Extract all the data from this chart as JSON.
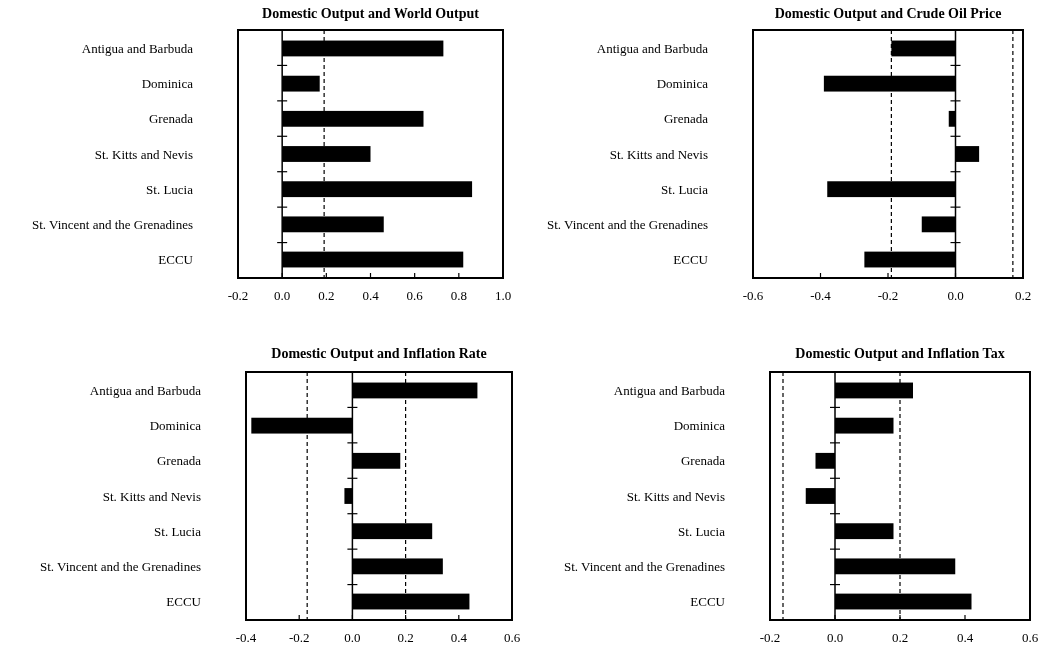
{
  "chart_data": [
    {
      "type": "bar",
      "orientation": "horizontal",
      "title": "Domestic Output and World Output",
      "categories": [
        "Antigua and Barbuda",
        "Dominica",
        "Grenada",
        "St. Kitts and Nevis",
        "St. Lucia",
        "St. Vincent and the Grenadines",
        "ECCU"
      ],
      "values": [
        0.73,
        0.17,
        0.64,
        0.4,
        0.86,
        0.46,
        0.82
      ],
      "color": "#000000",
      "xlim": [
        -0.2,
        1.0
      ],
      "xticks": [
        {
          "value": -0.2,
          "label": "-0.2"
        },
        {
          "value": 0,
          "label": "0.0"
        },
        {
          "value": 0.2,
          "label": "0.2"
        },
        {
          "value": 0.4,
          "label": "0.4"
        },
        {
          "value": 0.6,
          "label": "0.6"
        },
        {
          "value": 0.8,
          "label": "0.8"
        },
        {
          "value": 1.0,
          "label": "1.0"
        }
      ],
      "ref_lines": [
        {
          "axis": "x",
          "value": 0.19,
          "color": "#000000",
          "line_style": "dashed"
        }
      ]
    },
    {
      "type": "bar",
      "orientation": "horizontal",
      "title": "Domestic Output and Crude Oil Price",
      "categories": [
        "Antigua and Barbuda",
        "Dominica",
        "Grenada",
        "St. Kitts and Nevis",
        "St. Lucia",
        "St. Vincent and the Grenadines",
        "ECCU"
      ],
      "values": [
        -0.19,
        -0.39,
        -0.02,
        0.07,
        -0.38,
        -0.1,
        -0.27
      ],
      "color": "#000000",
      "xlim": [
        -0.6,
        0.2
      ],
      "xticks": [
        {
          "value": -0.6,
          "label": "-0.6"
        },
        {
          "value": -0.4,
          "label": "-0.4"
        },
        {
          "value": -0.2,
          "label": "-0.2"
        },
        {
          "value": 0,
          "label": "0.0"
        },
        {
          "value": 0.2,
          "label": "0.2"
        }
      ],
      "ref_lines": [
        {
          "axis": "x",
          "value": -0.19,
          "color": "#000000",
          "line_style": "dashed"
        },
        {
          "axis": "x",
          "value": 0.17,
          "color": "#000000",
          "line_style": "dashed"
        }
      ]
    },
    {
      "type": "bar",
      "orientation": "horizontal",
      "title": "Domestic Output and Inflation Rate",
      "categories": [
        "Antigua and Barbuda",
        "Dominica",
        "Grenada",
        "St. Kitts and Nevis",
        "St. Lucia",
        "St. Vincent and the Grenadines",
        "ECCU"
      ],
      "values": [
        0.47,
        -0.38,
        0.18,
        -0.03,
        0.3,
        0.34,
        0.44
      ],
      "color": "#000000",
      "xlim": [
        -0.4,
        0.6
      ],
      "xticks": [
        {
          "value": -0.4,
          "label": "-0.4"
        },
        {
          "value": -0.2,
          "label": "-0.2"
        },
        {
          "value": 0,
          "label": "0.0"
        },
        {
          "value": 0.2,
          "label": "0.2"
        },
        {
          "value": 0.4,
          "label": "0.4"
        },
        {
          "value": 0.6,
          "label": "0.6"
        }
      ],
      "ref_lines": [
        {
          "axis": "x",
          "value": -0.17,
          "color": "#000000",
          "line_style": "dashed"
        },
        {
          "axis": "x",
          "value": 0.2,
          "color": "#000000",
          "line_style": "dashed"
        }
      ]
    },
    {
      "type": "bar",
      "orientation": "horizontal",
      "title": "Domestic Output and Inflation Tax",
      "categories": [
        "Antigua and Barbuda",
        "Dominica",
        "Grenada",
        "St. Kitts and Nevis",
        "St. Lucia",
        "St. Vincent and the Grenadines",
        "ECCU"
      ],
      "values": [
        0.24,
        0.18,
        -0.06,
        -0.09,
        0.18,
        0.37,
        0.42
      ],
      "color": "#000000",
      "xlim": [
        -0.2,
        0.6
      ],
      "xticks": [
        {
          "value": -0.2,
          "label": "-0.2"
        },
        {
          "value": 0,
          "label": "0.0"
        },
        {
          "value": 0.2,
          "label": "0.2"
        },
        {
          "value": 0.4,
          "label": "0.4"
        },
        {
          "value": 0.6,
          "label": "0.6"
        }
      ],
      "ref_lines": [
        {
          "axis": "x",
          "value": -0.16,
          "color": "#000000",
          "line_style": "dashed"
        },
        {
          "axis": "x",
          "value": 0.2,
          "color": "#000000",
          "line_style": "dashed"
        }
      ]
    }
  ]
}
